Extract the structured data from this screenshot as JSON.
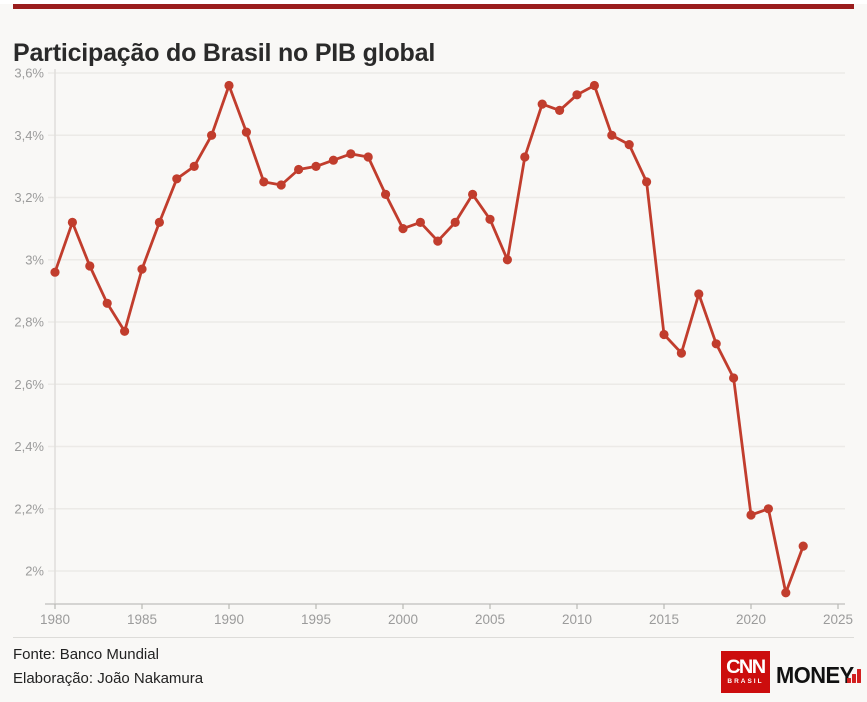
{
  "header": {
    "title": "Participação do Brasil no PIB global"
  },
  "chart_data": {
    "type": "line",
    "title": "Participação do Brasil no PIB global",
    "xlabel": "",
    "ylabel": "",
    "x": [
      1980,
      1981,
      1982,
      1983,
      1984,
      1985,
      1986,
      1987,
      1988,
      1989,
      1990,
      1991,
      1992,
      1993,
      1994,
      1995,
      1996,
      1997,
      1998,
      1999,
      2000,
      2001,
      2002,
      2003,
      2004,
      2005,
      2006,
      2007,
      2008,
      2009,
      2010,
      2011,
      2012,
      2013,
      2014,
      2015,
      2016,
      2017,
      2018,
      2019,
      2020,
      2021,
      2022,
      2023
    ],
    "values": [
      2.96,
      3.12,
      2.98,
      2.86,
      2.77,
      2.97,
      3.12,
      3.26,
      3.3,
      3.4,
      3.56,
      3.41,
      3.25,
      3.24,
      3.29,
      3.3,
      3.32,
      3.34,
      3.33,
      3.21,
      3.1,
      3.12,
      3.06,
      3.12,
      3.21,
      3.13,
      3.0,
      3.33,
      3.5,
      3.48,
      3.53,
      3.56,
      3.4,
      3.37,
      3.25,
      2.76,
      2.7,
      2.89,
      2.73,
      2.62,
      2.18,
      2.2,
      1.93,
      2.08
    ],
    "unit": "%",
    "x_ticks": [
      1980,
      1985,
      1990,
      1995,
      2000,
      2005,
      2010,
      2015,
      2020,
      2025
    ],
    "y_ticks": [
      3.6,
      3.4,
      3.2,
      3.0,
      2.8,
      2.6,
      2.4,
      2.2,
      2.0
    ],
    "y_tick_labels": [
      "3,6%",
      "3,4%",
      "3,2%",
      "3%",
      "2,8%",
      "2,6%",
      "2,4%",
      "2,2%",
      "2%"
    ],
    "xlim": [
      1980,
      2025
    ],
    "ylim": [
      1.89,
      3.6
    ],
    "grid": "horizontal",
    "legend": "none"
  },
  "footer": {
    "source": "Fonte: Banco Mundial",
    "elaboration": "Elaboração: João Nakamura"
  },
  "logo": {
    "cnn": "CNN",
    "brasil": "BRASIL",
    "money": "MONEY"
  },
  "colors": {
    "topbar": "#9a1d1d",
    "line": "#c13d2d",
    "grid": "#eceae7",
    "axis": "#c9c8c5",
    "axis_vertical": "#e0dedb",
    "tick": "#b9b8b5",
    "tick_label": "#9b9b9b",
    "logo_red": "#cc0d0d",
    "bars_red": "#d21f1f",
    "background": "#f9f8f6"
  }
}
